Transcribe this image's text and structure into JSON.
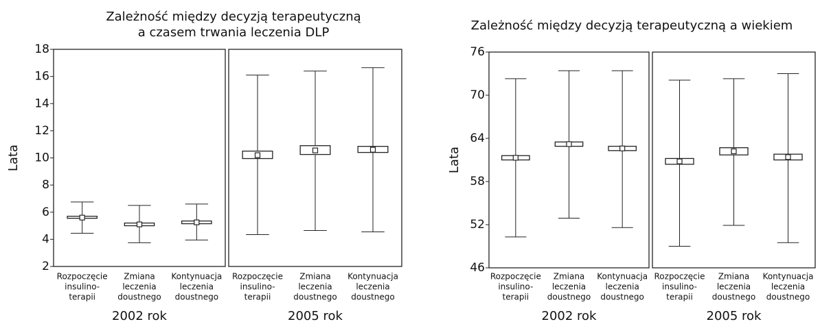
{
  "chart_data": [
    {
      "type": "box",
      "title": [
        "Zależność między decyzją terapeutyczną",
        "a czasem trwania leczenia DLP"
      ],
      "y_label": "Lata",
      "ylim": [
        2,
        18
      ],
      "yticks": [
        2,
        4,
        6,
        8,
        10,
        12,
        14,
        16,
        18
      ],
      "categories": [
        [
          "Rozpoczęcie",
          "insulino-",
          "terapii"
        ],
        [
          "Zmiana",
          "leczenia",
          "doustnego"
        ],
        [
          "Kontynuacja",
          "leczenia",
          "doustnego"
        ]
      ],
      "color": "#222222",
      "panels": [
        {
          "label": "2002 rok",
          "boxes": [
            {
              "mean": 5.6,
              "box_low": 5.55,
              "box_high": 5.7,
              "whisker_low": 4.45,
              "whisker_high": 6.75
            },
            {
              "mean": 5.1,
              "box_low": 5.0,
              "box_high": 5.2,
              "whisker_low": 3.75,
              "whisker_high": 6.5
            },
            {
              "mean": 5.25,
              "box_low": 5.15,
              "box_high": 5.35,
              "whisker_low": 3.95,
              "whisker_high": 6.6
            }
          ]
        },
        {
          "label": "2005 rok",
          "boxes": [
            {
              "mean": 10.2,
              "box_low": 9.95,
              "box_high": 10.5,
              "whisker_low": 4.35,
              "whisker_high": 16.1
            },
            {
              "mean": 10.55,
              "box_low": 10.25,
              "box_high": 10.9,
              "whisker_low": 4.65,
              "whisker_high": 16.4
            },
            {
              "mean": 10.6,
              "box_low": 10.4,
              "box_high": 10.85,
              "whisker_low": 4.55,
              "whisker_high": 16.65
            }
          ]
        }
      ]
    },
    {
      "type": "box",
      "title": [
        "Zależność między decyzją terapeutyczną a wiekiem"
      ],
      "y_label": "Lata",
      "ylim": [
        46,
        76
      ],
      "yticks": [
        46,
        52,
        58,
        64,
        70,
        76
      ],
      "categories": [
        [
          "Rozpoczęcie",
          "insulino-",
          "terapii"
        ],
        [
          "Zmiana",
          "leczenia",
          "doustnego"
        ],
        [
          "Kontynuacja",
          "leczenia",
          "doustnego"
        ]
      ],
      "color": "#222222",
      "panels": [
        {
          "label": "2002 rok",
          "boxes": [
            {
              "mean": 61.3,
              "box_low": 61.0,
              "box_high": 61.6,
              "whisker_low": 50.3,
              "whisker_high": 72.3
            },
            {
              "mean": 63.2,
              "box_low": 62.9,
              "box_high": 63.5,
              "whisker_low": 52.9,
              "whisker_high": 73.4
            },
            {
              "mean": 62.6,
              "box_low": 62.3,
              "box_high": 62.9,
              "whisker_low": 51.6,
              "whisker_high": 73.4
            }
          ]
        },
        {
          "label": "2005 rok",
          "boxes": [
            {
              "mean": 60.8,
              "box_low": 60.4,
              "box_high": 61.2,
              "whisker_low": 49.0,
              "whisker_high": 72.1
            },
            {
              "mean": 62.2,
              "box_low": 61.7,
              "box_high": 62.7,
              "whisker_low": 51.9,
              "whisker_high": 72.3
            },
            {
              "mean": 61.4,
              "box_low": 61.0,
              "box_high": 61.8,
              "whisker_low": 49.5,
              "whisker_high": 73.0
            }
          ]
        }
      ]
    }
  ]
}
